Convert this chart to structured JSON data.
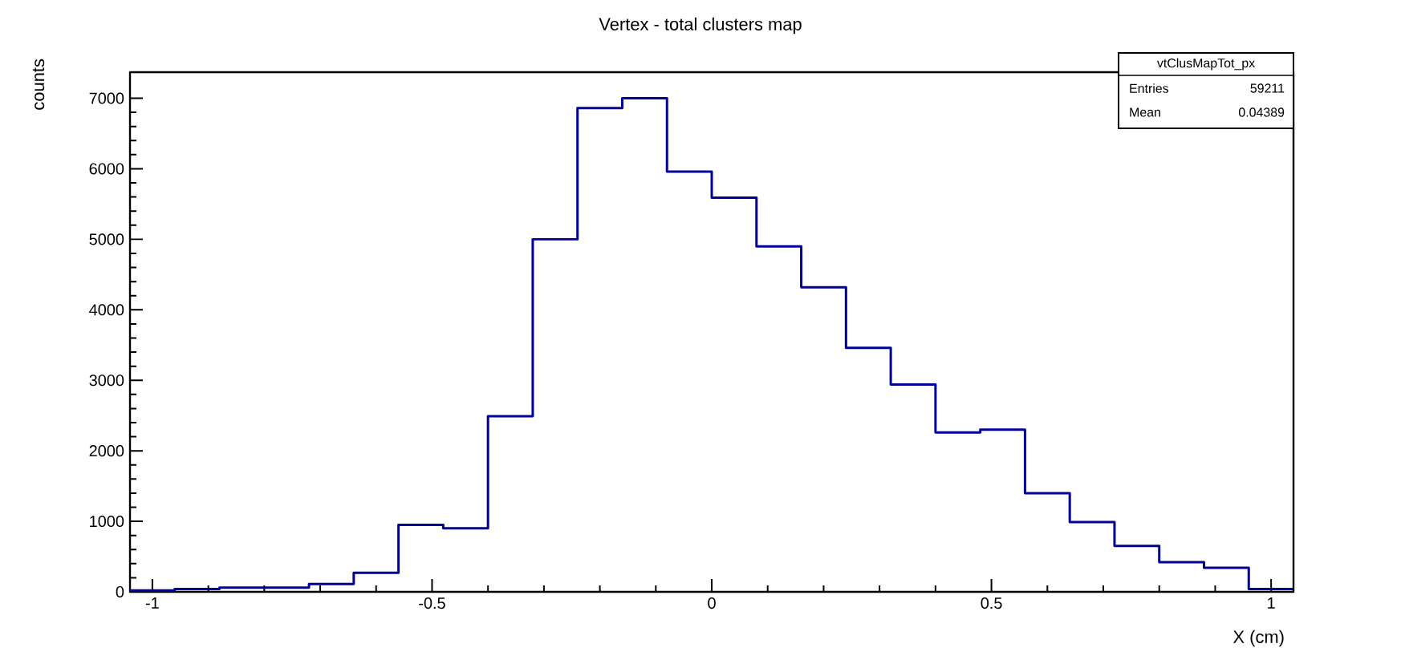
{
  "chart_data": {
    "type": "histogram",
    "title": "Vertex - total clusters map",
    "xlabel": "X (cm)",
    "ylabel": "counts",
    "bins": [
      -1.04,
      -0.96,
      -0.88,
      -0.8,
      -0.72,
      -0.64,
      -0.56,
      -0.48,
      -0.4,
      -0.32,
      -0.24,
      -0.16,
      -0.08,
      0,
      0.08,
      0.16,
      0.24,
      0.32,
      0.4,
      0.48,
      0.56,
      0.64,
      0.72,
      0.8,
      0.88,
      0.96,
      1.04
    ],
    "values": [
      20,
      40,
      60,
      60,
      110,
      270,
      950,
      900,
      2490,
      5000,
      6860,
      7000,
      5960,
      5590,
      4900,
      4320,
      3460,
      2940,
      2260,
      2300,
      1400,
      990,
      650,
      420,
      340,
      40
    ],
    "color": "#000099",
    "xlim": [
      -1.04,
      1.04
    ],
    "ylim": [
      0,
      7370
    ],
    "xticks": [
      -1,
      -0.5,
      0,
      0.5,
      1
    ],
    "yticks": [
      0,
      1000,
      2000,
      3000,
      4000,
      5000,
      6000,
      7000
    ],
    "annotations": [
      "vtClusMapTot_px",
      "Entries",
      "59211",
      "Mean",
      "0.04389"
    ]
  }
}
